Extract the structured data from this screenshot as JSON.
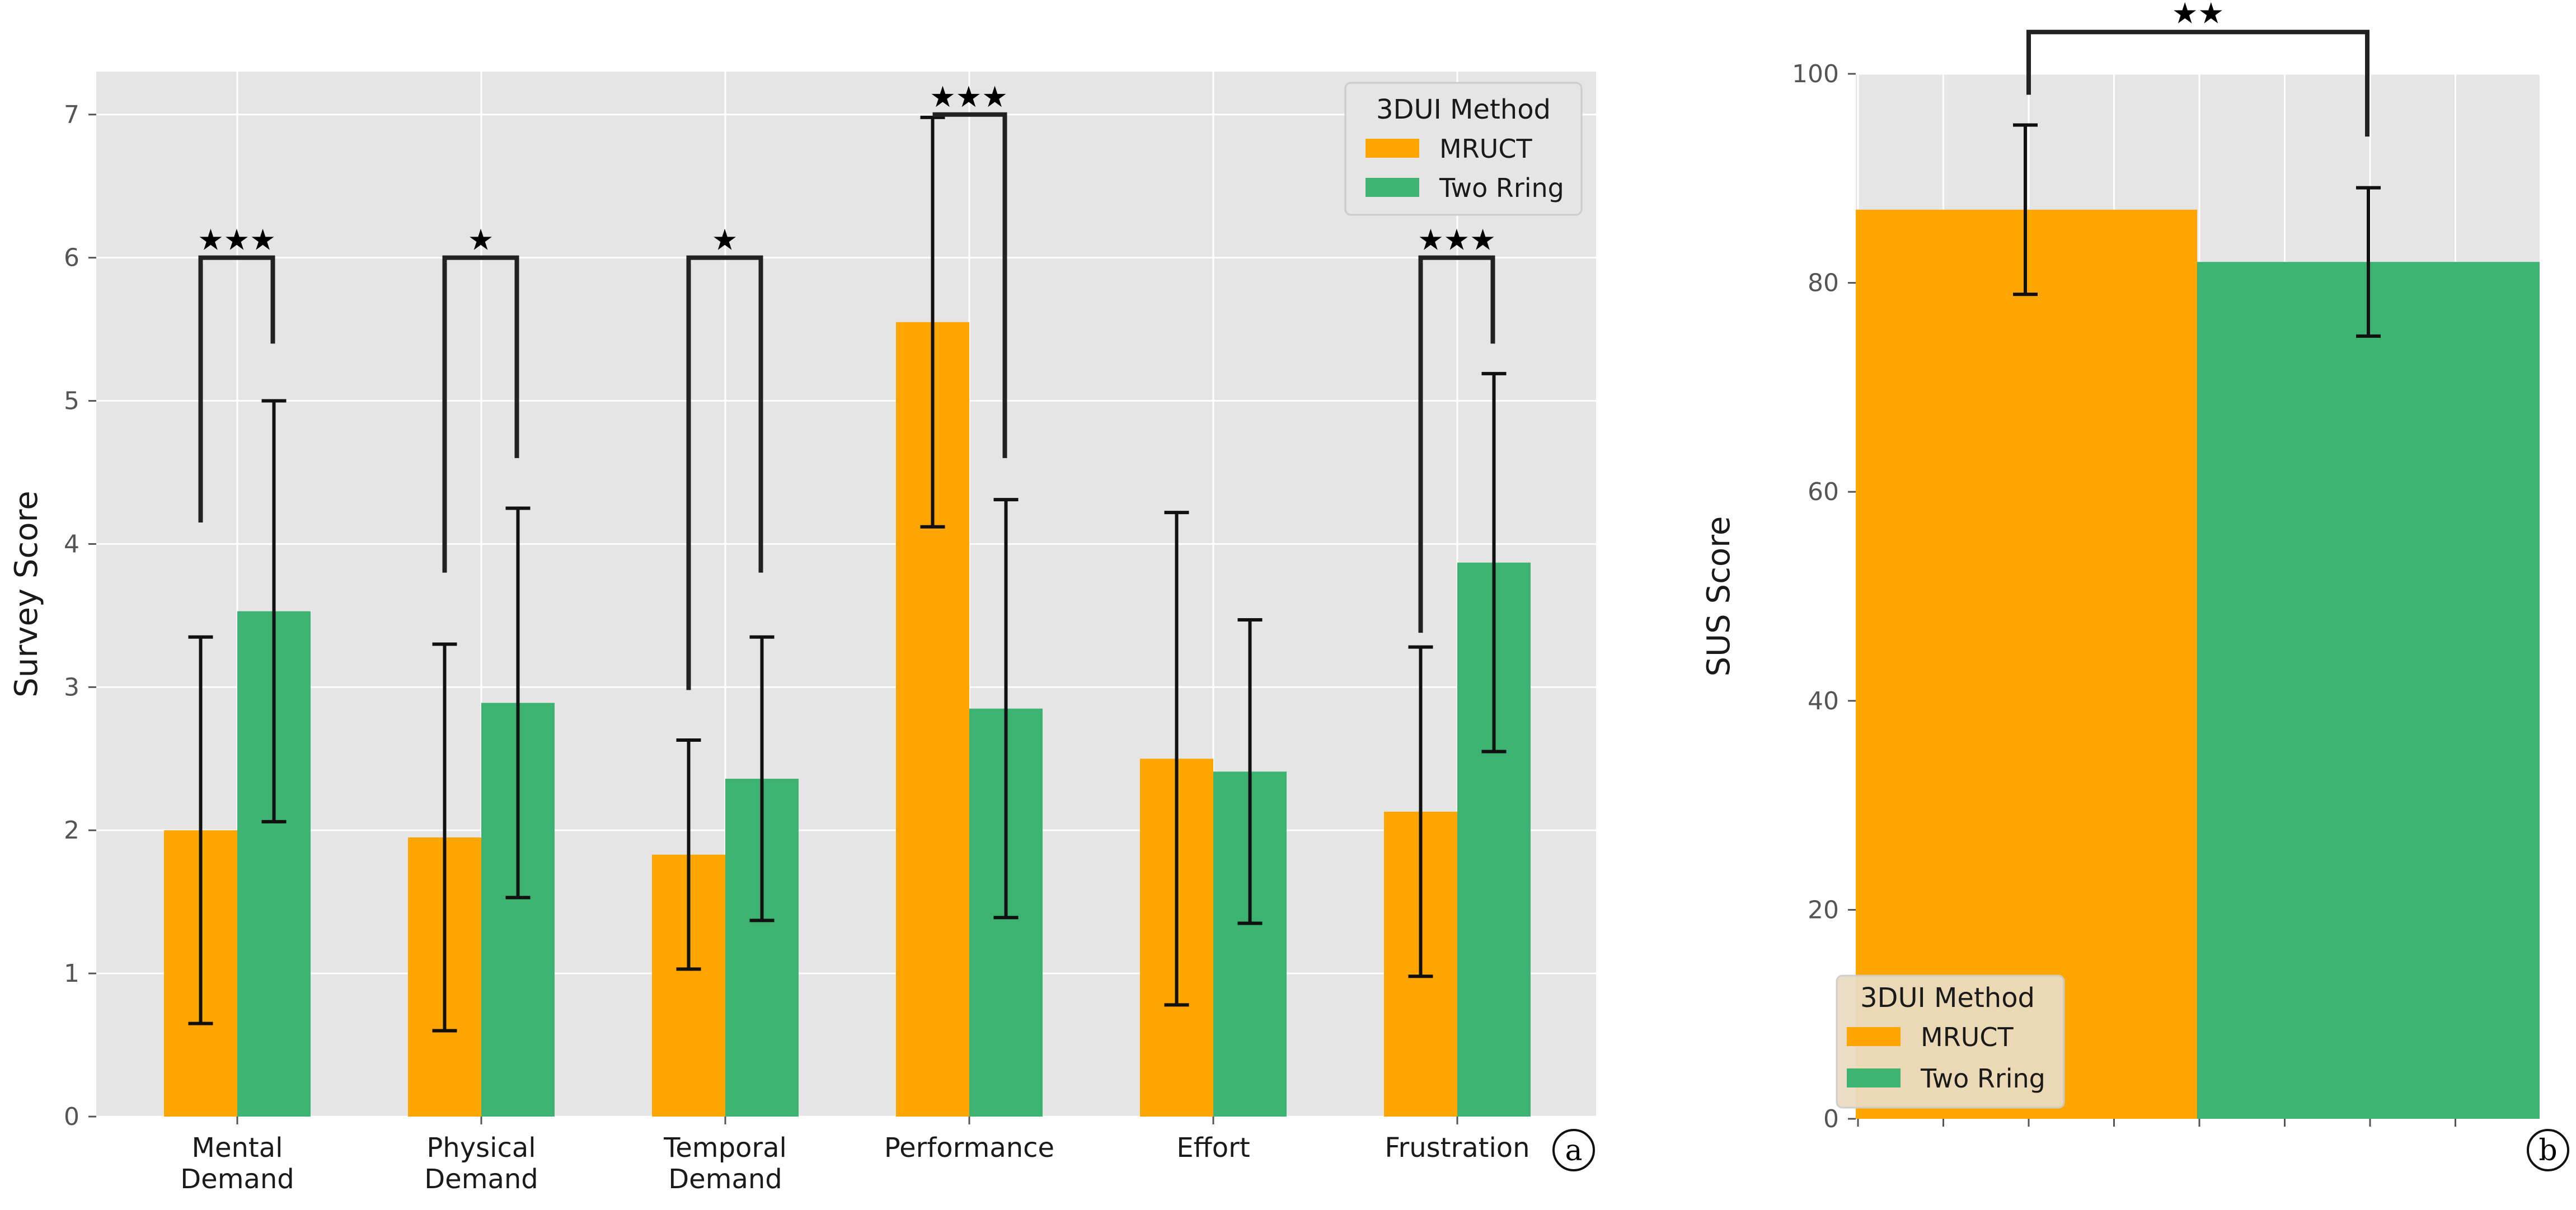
{
  "colors": {
    "mruct": "#ffa500",
    "two_rring": "#3cb371",
    "panel_bg": "#e5e5e5",
    "grid": "#ffffff"
  },
  "chart_data": [
    {
      "type": "bar",
      "panel": "a",
      "categories": [
        "Mental\nDemand",
        "Physical\nDemand",
        "Temporal\nDemand",
        "Performance",
        "Effort",
        "Frustration"
      ],
      "series": [
        {
          "name": "MRUCT",
          "values": [
            2.0,
            1.95,
            1.83,
            5.55,
            2.5,
            2.13
          ],
          "err": [
            1.35,
            1.35,
            0.8,
            1.43,
            1.72,
            1.15
          ]
        },
        {
          "name": "Two Rring",
          "values": [
            3.53,
            2.89,
            2.36,
            2.85,
            2.41,
            3.87
          ],
          "err": [
            1.47,
            1.36,
            0.99,
            1.46,
            1.06,
            1.32
          ]
        }
      ],
      "ylabel": "Survey Score",
      "ylim": [
        0,
        7.3
      ],
      "yticks": [
        "0",
        "1",
        "2",
        "3",
        "4",
        "5",
        "6",
        "7"
      ],
      "legend": {
        "title": "3DUI Method",
        "entries": [
          "MRUCT",
          "Two Rring"
        ],
        "placement": "top-right"
      },
      "significance": [
        {
          "category": 0,
          "stars": "★★★",
          "bracket_y": 6.0,
          "left_y": 4.15,
          "right_y": 5.4
        },
        {
          "category": 1,
          "stars": "★",
          "bracket_y": 6.0,
          "left_y": 3.8,
          "right_y": 4.6
        },
        {
          "category": 2,
          "stars": "★",
          "bracket_y": 6.0,
          "left_y": 2.98,
          "right_y": 3.8
        },
        {
          "category": 3,
          "stars": "★★★",
          "bracket_y": 7.0,
          "left_y": 7.0,
          "right_y": 4.6
        },
        {
          "category": 5,
          "stars": "★★★",
          "bracket_y": 6.0,
          "left_y": 3.38,
          "right_y": 5.4
        }
      ],
      "tag": "a"
    },
    {
      "type": "bar",
      "panel": "b",
      "categories": [
        ""
      ],
      "series": [
        {
          "name": "MRUCT",
          "values": [
            87.0
          ],
          "err": [
            8.1
          ]
        },
        {
          "name": "Two Rring",
          "values": [
            82.0
          ],
          "err": [
            7.1
          ]
        }
      ],
      "ylabel": "SUS Score",
      "ylim": [
        0,
        100
      ],
      "yticks": [
        "0",
        "20",
        "40",
        "60",
        "80",
        "100"
      ],
      "legend": {
        "title": "3DUI Method",
        "entries": [
          "MRUCT",
          "Two Rring"
        ],
        "placement": "lower-left"
      },
      "significance": [
        {
          "stars": "★★",
          "bracket_y": 104,
          "left_y": 98,
          "right_y": 94
        }
      ],
      "tag": "b"
    }
  ]
}
